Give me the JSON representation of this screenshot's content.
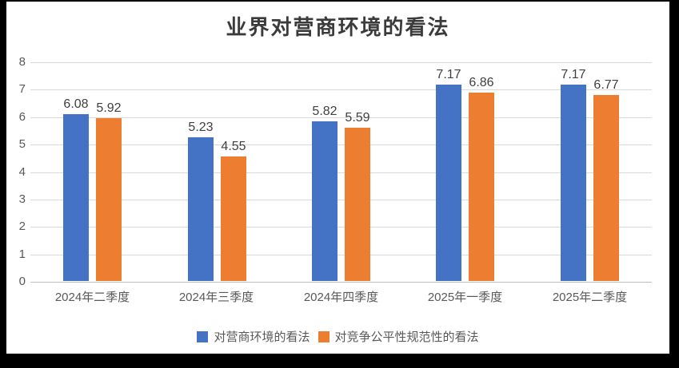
{
  "chart_data": {
    "type": "bar",
    "title": "业界对营商环境的看法",
    "categories": [
      "2024年二季度",
      "2024年三季度",
      "2024年四季度",
      "2025年一季度",
      "2025年二季度"
    ],
    "series": [
      {
        "name": "对营商环境的看法",
        "color": "#4472C4",
        "values": [
          6.08,
          5.23,
          5.82,
          7.17,
          7.17
        ]
      },
      {
        "name": "对竞争公平性规范性的看法",
        "color": "#ED7D31",
        "values": [
          5.92,
          4.55,
          5.59,
          6.86,
          6.77
        ]
      }
    ],
    "ylim": [
      0,
      8
    ],
    "ytick_step": 1,
    "ytick_labels": [
      "0",
      "1",
      "2",
      "3",
      "4",
      "5",
      "6",
      "7",
      "8"
    ],
    "grid": true,
    "legend_position": "bottom",
    "data_labels": true,
    "data_label_decimals": 2
  },
  "colors": {
    "frame_border": "#000000",
    "background": "#ffffff",
    "gridline": "#d9d9d9",
    "axis_text": "#595959",
    "title_text": "#3b3b3b",
    "value_label_text": "#404040"
  }
}
